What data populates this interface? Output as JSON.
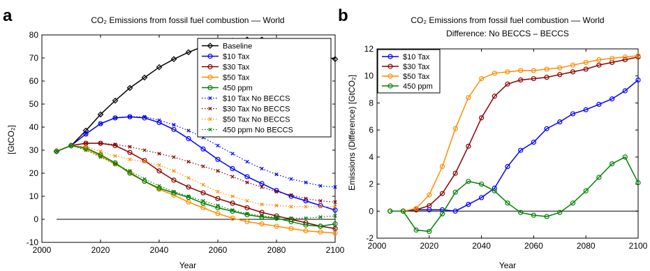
{
  "panels": {
    "a": {
      "label": "a"
    },
    "b": {
      "label": "b"
    }
  },
  "chart_data": [
    {
      "type": "line",
      "title": "CO₂ Emissions from fossil fuel combustion –– World",
      "xlabel": "Year",
      "ylabel": "[GtCO₂]",
      "xlim": [
        2000,
        2100
      ],
      "ylim": [
        -10,
        80
      ],
      "xticks": [
        2000,
        2020,
        2040,
        2060,
        2080,
        2100
      ],
      "yticks": [
        -10,
        0,
        10,
        20,
        30,
        40,
        50,
        60,
        70,
        80
      ],
      "grid": false,
      "legend": "top-right",
      "zero_line": true,
      "x": [
        2005,
        2010,
        2015,
        2020,
        2025,
        2030,
        2035,
        2040,
        2045,
        2050,
        2055,
        2060,
        2065,
        2070,
        2075,
        2080,
        2085,
        2090,
        2095,
        2100
      ],
      "series": [
        {
          "name": "Baseline",
          "color": "#000000",
          "style": "solid",
          "marker": "diamond",
          "values": [
            29.5,
            32,
            38.5,
            45.5,
            51.5,
            57,
            61.5,
            66,
            69.5,
            72.5,
            75,
            76.5,
            77.5,
            78,
            78,
            77,
            75,
            73,
            71,
            69.5
          ]
        },
        {
          "name": "$10 Tax",
          "color": "#0000ff",
          "style": "solid",
          "marker": "circle",
          "values": [
            29.5,
            32,
            37,
            41.5,
            44,
            44.5,
            44,
            42,
            39,
            35,
            30.5,
            26,
            22,
            18.5,
            15.5,
            12.5,
            10,
            8,
            6,
            4
          ]
        },
        {
          "name": "$30 Tax",
          "color": "#8b0000",
          "style": "solid",
          "marker": "circle",
          "values": [
            29.5,
            32,
            33,
            33,
            32,
            29,
            25.5,
            21,
            17,
            14,
            11.5,
            9,
            7,
            5,
            3,
            1.5,
            0,
            -1.5,
            -3,
            -4
          ]
        },
        {
          "name": "$50 Tax",
          "color": "#ff8c00",
          "style": "solid",
          "marker": "circle",
          "values": [
            29.5,
            32,
            30.5,
            27.5,
            24,
            20.5,
            16.5,
            13,
            10.5,
            7.5,
            5,
            2.5,
            0.5,
            -1,
            -2,
            -3,
            -4,
            -5,
            -5.5,
            -6
          ]
        },
        {
          "name": "450 ppm",
          "color": "#008000",
          "style": "solid",
          "marker": "circle",
          "values": [
            29.5,
            32,
            31,
            28,
            24.5,
            20,
            16.5,
            13.5,
            11.5,
            9.5,
            7,
            5,
            3.5,
            2,
            1,
            0.5,
            -1,
            -2.5,
            -3,
            -2
          ]
        },
        {
          "name": "$10 Tax No BECCS",
          "color": "#0000ff",
          "style": "dotted",
          "marker": "x",
          "values": [
            29.5,
            32,
            37,
            41.5,
            44,
            44.5,
            44.5,
            43,
            41,
            38.5,
            35.5,
            32,
            28.5,
            25,
            22,
            19.5,
            17.5,
            16,
            14.5,
            14
          ]
        },
        {
          "name": "$30 Tax No BECCS",
          "color": "#8b0000",
          "style": "dotted",
          "marker": "x",
          "values": [
            29.5,
            32,
            33,
            33,
            32.5,
            31.5,
            30,
            28.5,
            27,
            25,
            23,
            21,
            18.5,
            16,
            14,
            12,
            10.5,
            9,
            8,
            7.5
          ]
        },
        {
          "name": "$50 Tax No BECCS",
          "color": "#ff8c00",
          "style": "dotted",
          "marker": "x",
          "values": [
            29.5,
            32,
            31.5,
            29.5,
            27.5,
            26,
            25,
            23.5,
            21,
            18,
            15,
            12,
            10,
            8,
            6.5,
            6,
            5.5,
            5.5,
            5.5,
            5.5
          ]
        },
        {
          "name": "450 ppm No BECCS",
          "color": "#008000",
          "style": "dotted",
          "marker": "x",
          "values": [
            29.5,
            32,
            30,
            27,
            24,
            21,
            17.5,
            14.5,
            12,
            10,
            8,
            6,
            4,
            2.5,
            1.5,
            1,
            0.5,
            0.5,
            1,
            1.5
          ]
        }
      ]
    },
    {
      "type": "line",
      "title": "CO₂ Emissions from fossil fuel combustion –– World",
      "subtitle": "Difference: No BECCS – BECCS",
      "xlabel": "Year",
      "ylabel": "Emissions (Difference) [GtCO₂]",
      "xlim": [
        2000,
        2100
      ],
      "ylim": [
        -2,
        12
      ],
      "xticks": [
        2000,
        2020,
        2040,
        2060,
        2080,
        2100
      ],
      "yticks": [
        -2,
        0,
        2,
        4,
        6,
        8,
        10,
        12
      ],
      "grid": false,
      "legend": "top-left",
      "zero_line": true,
      "x": [
        2005,
        2010,
        2015,
        2020,
        2025,
        2030,
        2035,
        2040,
        2045,
        2050,
        2055,
        2060,
        2065,
        2070,
        2075,
        2080,
        2085,
        2090,
        2095,
        2100
      ],
      "series": [
        {
          "name": "$10 Tax",
          "color": "#0000ff",
          "style": "solid",
          "marker": "circle",
          "values": [
            0,
            0,
            0.1,
            0.1,
            0.1,
            0,
            0.5,
            1.0,
            1.7,
            3.3,
            4.5,
            5.1,
            6.1,
            6.6,
            7.2,
            7.5,
            7.9,
            8.3,
            8.9,
            9.7
          ]
        },
        {
          "name": "$30 Tax",
          "color": "#8b0000",
          "style": "solid",
          "marker": "circle",
          "values": [
            0,
            0,
            0.1,
            0.4,
            1.3,
            2.8,
            4.8,
            6.9,
            8.5,
            9.4,
            9.7,
            9.8,
            9.9,
            10.1,
            10.3,
            10.5,
            10.8,
            11.0,
            11.2,
            11.4
          ]
        },
        {
          "name": "$50 Tax",
          "color": "#ff8c00",
          "style": "solid",
          "marker": "circle",
          "values": [
            0,
            0,
            0.2,
            1.2,
            3.3,
            6.1,
            8.4,
            9.8,
            10.2,
            10.3,
            10.4,
            10.4,
            10.5,
            10.6,
            10.8,
            11.0,
            11.2,
            11.3,
            11.4,
            11.5
          ]
        },
        {
          "name": "450 ppm",
          "color": "#008000",
          "style": "solid",
          "marker": "circle",
          "values": [
            0,
            0,
            -1.4,
            -1.5,
            -0.2,
            1.4,
            2.2,
            2.0,
            1.5,
            0.6,
            -0.1,
            -0.3,
            -0.4,
            -0.1,
            0.6,
            1.5,
            2.5,
            3.5,
            4.0,
            2.1
          ]
        }
      ]
    }
  ]
}
